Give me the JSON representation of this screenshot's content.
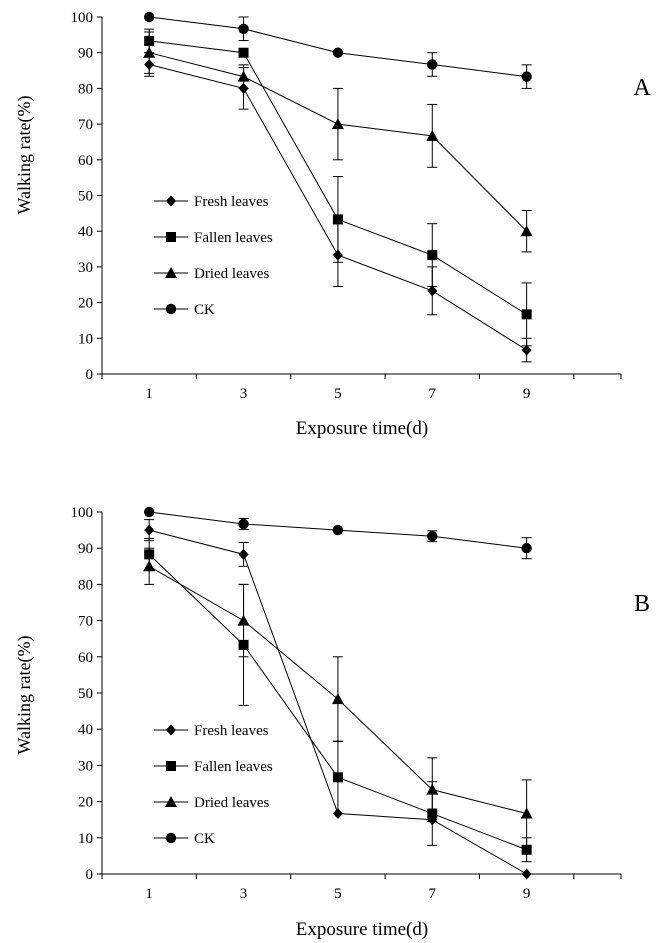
{
  "chart_data": [
    {
      "type": "line",
      "panel_label": "A",
      "xlabel": "Exposure time(d)",
      "ylabel": "Walking rate(%)",
      "x": [
        1,
        3,
        5,
        7,
        9
      ],
      "xlim": [
        0,
        11
      ],
      "ylim": [
        0,
        100
      ],
      "xticks": [
        "1",
        "3",
        "5",
        "7",
        "9"
      ],
      "yticks": [
        "0",
        "10",
        "20",
        "30",
        "40",
        "50",
        "60",
        "70",
        "80",
        "90",
        "100"
      ],
      "grid": false,
      "legend_position": "left-middle",
      "series": [
        {
          "name": "Fresh leaves",
          "marker": "diamond",
          "values": [
            86.7,
            80,
            33.3,
            23.3,
            6.7
          ],
          "errors": [
            3.3,
            5.8,
            8.8,
            6.7,
            3.3
          ]
        },
        {
          "name": "Fallen leaves",
          "marker": "square",
          "values": [
            93.3,
            90,
            43.3,
            33.3,
            16.7
          ],
          "errors": [
            3.3,
            0,
            12,
            8.8,
            8.8
          ]
        },
        {
          "name": "Dried leaves",
          "marker": "triangle",
          "values": [
            90,
            83.3,
            70,
            66.7,
            40
          ],
          "errors": [
            5.8,
            3.3,
            10,
            8.8,
            5.8
          ]
        },
        {
          "name": "CK",
          "marker": "circle",
          "values": [
            100,
            96.7,
            90,
            86.7,
            83.3
          ],
          "errors": [
            0,
            3.3,
            0,
            3.3,
            3.3
          ]
        }
      ]
    },
    {
      "type": "line",
      "panel_label": "B",
      "xlabel": "Exposure time(d)",
      "ylabel": "Walking rate(%)",
      "x": [
        1,
        3,
        5,
        7,
        9
      ],
      "xlim": [
        0,
        11
      ],
      "ylim": [
        0,
        100
      ],
      "xticks": [
        "1",
        "3",
        "5",
        "7",
        "9"
      ],
      "yticks": [
        "0",
        "10",
        "20",
        "30",
        "40",
        "50",
        "60",
        "70",
        "80",
        "90",
        "100"
      ],
      "grid": false,
      "legend_position": "left-bottom",
      "series": [
        {
          "name": "Fresh leaves",
          "marker": "diamond",
          "values": [
            95,
            88.3,
            16.7,
            15,
            0
          ],
          "errors": [
            2.9,
            3.3,
            0,
            0,
            0
          ]
        },
        {
          "name": "Fallen leaves",
          "marker": "square",
          "values": [
            88.3,
            63.3,
            26.7,
            16.7,
            6.7
          ],
          "errors": [
            4.4,
            16.7,
            10,
            8.8,
            3.3
          ]
        },
        {
          "name": "Dried leaves",
          "marker": "triangle",
          "values": [
            85,
            70,
            48.3,
            23.3,
            16.7
          ],
          "errors": [
            5,
            10,
            11.7,
            8.8,
            9.3
          ]
        },
        {
          "name": "CK",
          "marker": "circle",
          "values": [
            100,
            96.7,
            95,
            93.3,
            90
          ],
          "errors": [
            0,
            1.5,
            0,
            1.5,
            2.9
          ]
        }
      ]
    }
  ]
}
